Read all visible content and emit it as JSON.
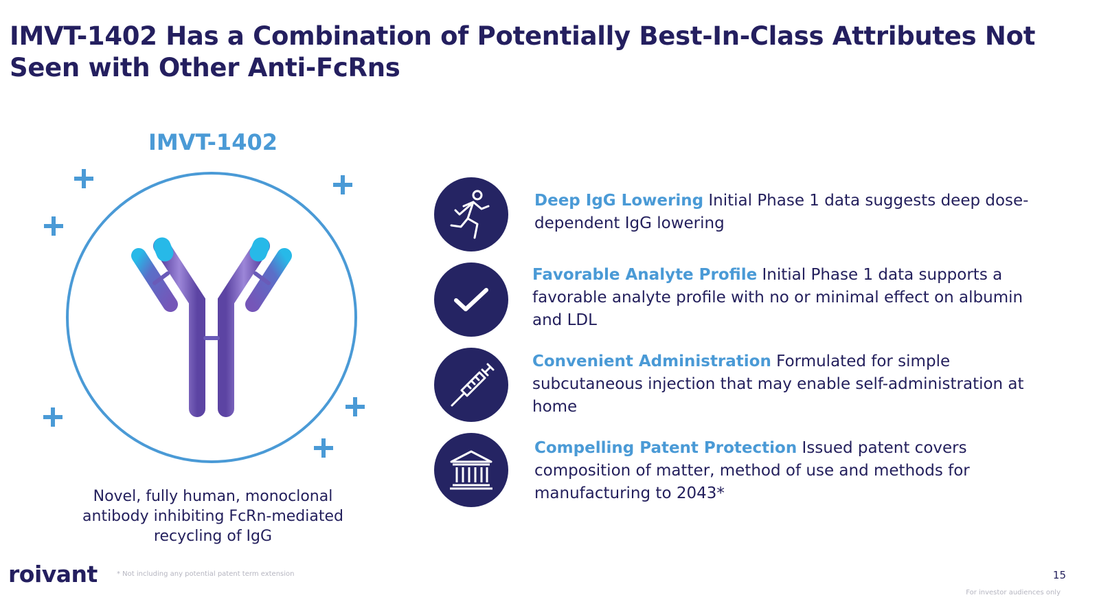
{
  "slide": {
    "title": "IMVT-1402 Has a Combination of Potentially Best-In-Class Attributes Not Seen with Other Anti-FcRns"
  },
  "product": {
    "name": "IMVT-1402",
    "description": "Novel, fully human, monoclonal antibody inhibiting FcRn-mediated recycling of IgG",
    "graphic_icon": "antibody-icon",
    "circle_color": "#4a9ad6",
    "plus_color": "#4a9ad6"
  },
  "features": [
    {
      "icon": "running-person-icon",
      "heading": "Deep IgG Lowering",
      "text": "Initial Phase 1 data suggests deep dose-dependent IgG lowering"
    },
    {
      "icon": "checkmark-icon",
      "heading": "Favorable Analyte Profile",
      "text": "Initial Phase 1 data supports a favorable analyte profile with no or minimal effect on albumin and LDL"
    },
    {
      "icon": "syringe-icon",
      "heading": "Convenient Administration",
      "text": "Formulated for simple subcutaneous injection that may enable self-administration at home"
    },
    {
      "icon": "courthouse-icon",
      "heading": "Compelling Patent Protection",
      "text": "Issued patent covers composition of matter, method of use and methods for manufacturing to 2043*"
    }
  ],
  "footer": {
    "logo": "roivant",
    "footnote": "* Not including any potential patent term extension",
    "page_number": "15",
    "audience_note": "For investor audiences only"
  },
  "colors": {
    "title": "#241f5f",
    "accent": "#4a9ad6",
    "icon_bg": "#252463",
    "antibody": "#6f57b5"
  }
}
